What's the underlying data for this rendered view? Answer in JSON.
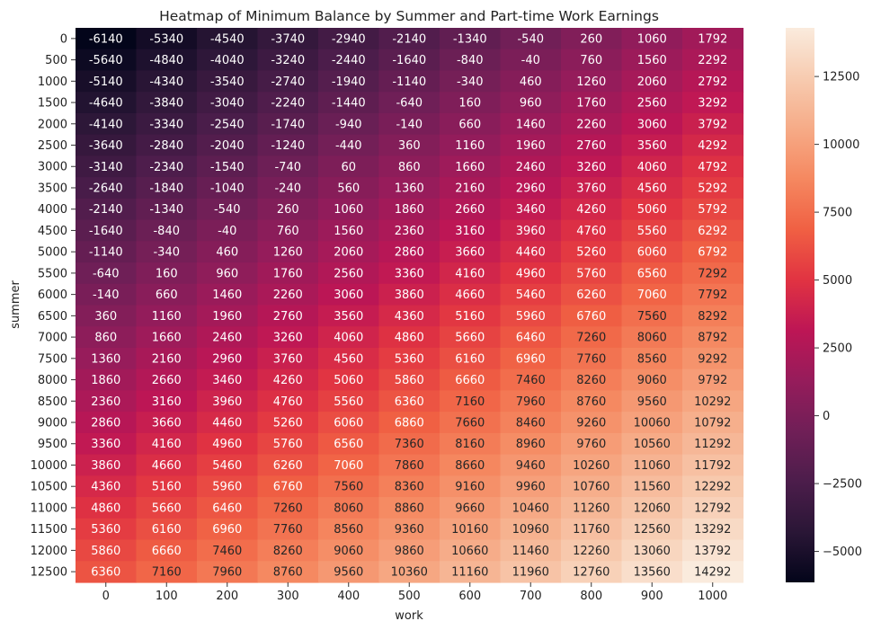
{
  "chart_data": {
    "type": "heatmap",
    "title": "Heatmap of Minimum Balance by Summer and Part-time Work Earnings",
    "xlabel": "work",
    "ylabel": "summer",
    "x_ticks": [
      "0",
      "100",
      "200",
      "300",
      "400",
      "500",
      "600",
      "700",
      "800",
      "900",
      "1000"
    ],
    "y_ticks": [
      "0",
      "500",
      "1000",
      "1500",
      "2000",
      "2500",
      "3000",
      "3500",
      "4000",
      "4500",
      "5000",
      "5500",
      "6000",
      "6500",
      "7000",
      "7500",
      "8000",
      "8500",
      "9000",
      "9500",
      "10000",
      "10500",
      "11000",
      "11500",
      "12000",
      "12500"
    ],
    "values": [
      [
        -6140,
        -5340,
        -4540,
        -3740,
        -2940,
        -2140,
        -1340,
        -540,
        260,
        1060,
        1792
      ],
      [
        -5640,
        -4840,
        -4040,
        -3240,
        -2440,
        -1640,
        -840,
        -40,
        760,
        1560,
        2292
      ],
      [
        -5140,
        -4340,
        -3540,
        -2740,
        -1940,
        -1140,
        -340,
        460,
        1260,
        2060,
        2792
      ],
      [
        -4640,
        -3840,
        -3040,
        -2240,
        -1440,
        -640,
        160,
        960,
        1760,
        2560,
        3292
      ],
      [
        -4140,
        -3340,
        -2540,
        -1740,
        -940,
        -140,
        660,
        1460,
        2260,
        3060,
        3792
      ],
      [
        -3640,
        -2840,
        -2040,
        -1240,
        -440,
        360,
        1160,
        1960,
        2760,
        3560,
        4292
      ],
      [
        -3140,
        -2340,
        -1540,
        -740,
        60,
        860,
        1660,
        2460,
        3260,
        4060,
        4792
      ],
      [
        -2640,
        -1840,
        -1040,
        -240,
        560,
        1360,
        2160,
        2960,
        3760,
        4560,
        5292
      ],
      [
        -2140,
        -1340,
        -540,
        260,
        1060,
        1860,
        2660,
        3460,
        4260,
        5060,
        5792
      ],
      [
        -1640,
        -840,
        -40,
        760,
        1560,
        2360,
        3160,
        3960,
        4760,
        5560,
        6292
      ],
      [
        -1140,
        -340,
        460,
        1260,
        2060,
        2860,
        3660,
        4460,
        5260,
        6060,
        6792
      ],
      [
        -640,
        160,
        960,
        1760,
        2560,
        3360,
        4160,
        4960,
        5760,
        6560,
        7292
      ],
      [
        -140,
        660,
        1460,
        2260,
        3060,
        3860,
        4660,
        5460,
        6260,
        7060,
        7792
      ],
      [
        360,
        1160,
        1960,
        2760,
        3560,
        4360,
        5160,
        5960,
        6760,
        7560,
        8292
      ],
      [
        860,
        1660,
        2460,
        3260,
        4060,
        4860,
        5660,
        6460,
        7260,
        8060,
        8792
      ],
      [
        1360,
        2160,
        2960,
        3760,
        4560,
        5360,
        6160,
        6960,
        7760,
        8560,
        9292
      ],
      [
        1860,
        2660,
        3460,
        4260,
        5060,
        5860,
        6660,
        7460,
        8260,
        9060,
        9792
      ],
      [
        2360,
        3160,
        3960,
        4760,
        5560,
        6360,
        7160,
        7960,
        8760,
        9560,
        10292
      ],
      [
        2860,
        3660,
        4460,
        5260,
        6060,
        6860,
        7660,
        8460,
        9260,
        10060,
        10792
      ],
      [
        3360,
        4160,
        4960,
        5760,
        6560,
        7360,
        8160,
        8960,
        9760,
        10560,
        11292
      ],
      [
        3860,
        4660,
        5460,
        6260,
        7060,
        7860,
        8660,
        9460,
        10260,
        11060,
        11792
      ],
      [
        4360,
        5160,
        5960,
        6760,
        7560,
        8360,
        9160,
        9960,
        10760,
        11560,
        12292
      ],
      [
        4860,
        5660,
        6460,
        7260,
        8060,
        8860,
        9660,
        10460,
        11260,
        12060,
        12792
      ],
      [
        5360,
        6160,
        6960,
        7760,
        8560,
        9360,
        10160,
        10960,
        11760,
        12560,
        13292
      ],
      [
        5860,
        6660,
        7460,
        8260,
        9060,
        9860,
        10660,
        11460,
        12260,
        13060,
        13792
      ],
      [
        6360,
        7160,
        7960,
        8760,
        9560,
        10360,
        11160,
        11960,
        12760,
        13560,
        14292
      ]
    ],
    "colorbar": {
      "ticks": [
        -5000,
        -2500,
        0,
        2500,
        5000,
        7500,
        10000,
        12500
      ],
      "tick_labels": [
        "−5000",
        "−2500",
        "0",
        "2500",
        "5000",
        "7500",
        "10000",
        "12500"
      ],
      "range": [
        -6140,
        14292
      ]
    },
    "colormap": "rocket",
    "colormap_stops": [
      "#03051a",
      "#2a1636",
      "#4c1d4b",
      "#701f57",
      "#961c5b",
      "#bd1655",
      "#e13342",
      "#f06043",
      "#f58860",
      "#f6ab87",
      "#f7cbb0",
      "#faebdd"
    ]
  }
}
